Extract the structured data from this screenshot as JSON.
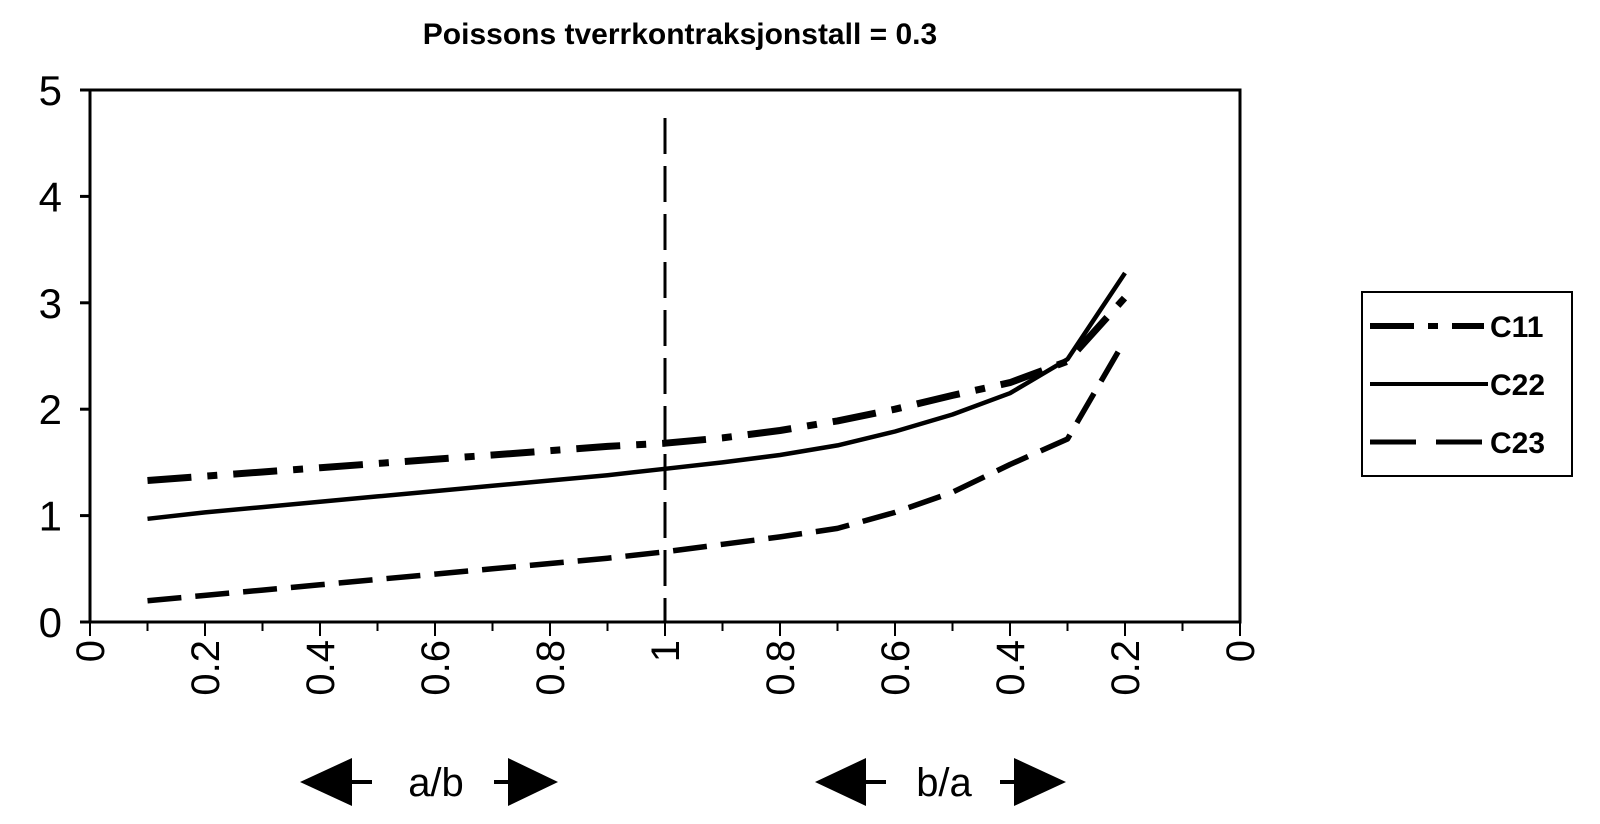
{
  "chart_data": {
    "type": "line",
    "title": "Poissons tverrkontraksjonstall = 0.3",
    "xlabel": "",
    "ylabel": "",
    "ylim": [
      0,
      5
    ],
    "yticks": [
      "0",
      "1",
      "2",
      "3",
      "4",
      "5"
    ],
    "xticks": [
      "0",
      "0.2",
      "0.4",
      "0.6",
      "0.8",
      "1",
      "0.8",
      "0.6",
      "0.4",
      "0.2",
      "0"
    ],
    "x_sections": [
      {
        "label": "a/b",
        "direction": "left half: ratio a/b from 0 to 1"
      },
      {
        "label": "b/a",
        "direction": "right half: ratio b/a from 1 to 0"
      }
    ],
    "reference_line": {
      "at_xtick": "1",
      "style": "dashed vertical"
    },
    "x_points": [
      "0.1",
      "0.2",
      "0.3",
      "0.4",
      "0.5",
      "0.6",
      "0.7",
      "0.8",
      "0.9",
      "1",
      "0.9",
      "0.8",
      "0.7",
      "0.6",
      "0.5",
      "0.4",
      "0.3",
      "0.2"
    ],
    "x_position_index": [
      0.5,
      1,
      1.5,
      2,
      2.5,
      3,
      3.5,
      4,
      4.5,
      5,
      5.5,
      6,
      6.5,
      7,
      7.5,
      8,
      8.5,
      9
    ],
    "series": [
      {
        "name": "C11",
        "style": "dash-dot",
        "values": [
          1.33,
          1.37,
          1.41,
          1.45,
          1.49,
          1.53,
          1.57,
          1.61,
          1.65,
          1.68,
          1.73,
          1.8,
          1.89,
          2.0,
          2.13,
          2.25,
          2.45,
          3.05
        ]
      },
      {
        "name": "C22",
        "style": "solid",
        "values": [
          0.97,
          1.03,
          1.08,
          1.13,
          1.18,
          1.23,
          1.28,
          1.33,
          1.38,
          1.44,
          1.5,
          1.57,
          1.66,
          1.79,
          1.95,
          2.15,
          2.47,
          3.28
        ]
      },
      {
        "name": "C23",
        "style": "dashed",
        "values": [
          0.2,
          0.25,
          0.3,
          0.35,
          0.4,
          0.45,
          0.5,
          0.55,
          0.6,
          0.66,
          0.73,
          0.8,
          0.88,
          1.03,
          1.22,
          1.48,
          1.72,
          2.65
        ]
      }
    ],
    "legend": {
      "placement": "right",
      "entries": [
        "C11",
        "C22",
        "C23"
      ]
    },
    "grid": false
  }
}
